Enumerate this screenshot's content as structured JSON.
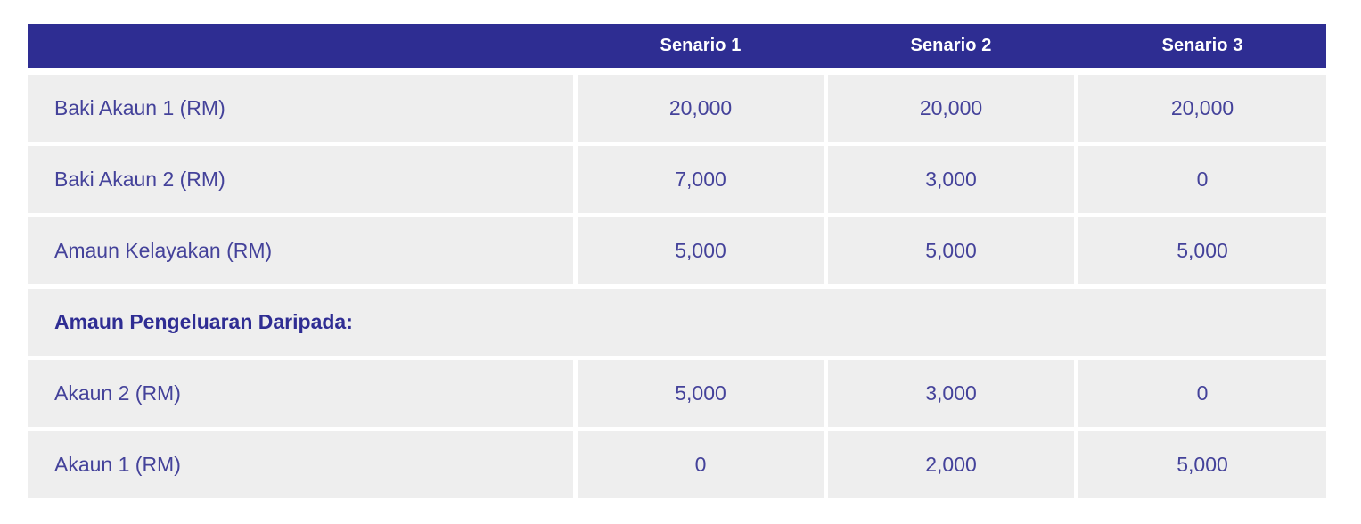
{
  "colors": {
    "header_bg": "#2e2d92",
    "header_text": "#ffffff",
    "cell_bg": "#eeeeee",
    "label_text": "#44429a",
    "section_text": "#2f2d93",
    "page_bg": "#ffffff"
  },
  "table": {
    "columns": [
      "",
      "Senario 1",
      "Senario 2",
      "Senario 3"
    ],
    "rows": [
      {
        "type": "data",
        "label": "Baki Akaun 1 (RM)",
        "values": [
          "20,000",
          "20,000",
          "20,000"
        ]
      },
      {
        "type": "data",
        "label": "Baki Akaun 2 (RM)",
        "values": [
          "7,000",
          "3,000",
          "0"
        ]
      },
      {
        "type": "data",
        "label": "Amaun Kelayakan (RM)",
        "values": [
          "5,000",
          "5,000",
          "5,000"
        ]
      },
      {
        "type": "section",
        "label": "Amaun Pengeluaran Daripada:",
        "values": []
      },
      {
        "type": "data",
        "label": "Akaun 2 (RM)",
        "values": [
          "5,000",
          "3,000",
          "0"
        ]
      },
      {
        "type": "data",
        "label": "Akaun 1 (RM)",
        "values": [
          "0",
          "2,000",
          "5,000"
        ]
      }
    ]
  },
  "chart_data": {
    "type": "table",
    "title": "",
    "columns": [
      "",
      "Senario 1",
      "Senario 2",
      "Senario 3"
    ],
    "rows": [
      [
        "Baki Akaun 1 (RM)",
        20000,
        20000,
        20000
      ],
      [
        "Baki Akaun 2 (RM)",
        7000,
        3000,
        0
      ],
      [
        "Amaun Kelayakan (RM)",
        5000,
        5000,
        5000
      ],
      [
        "Amaun Pengeluaran Daripada:",
        null,
        null,
        null
      ],
      [
        "Akaun 2 (RM)",
        5000,
        3000,
        0
      ],
      [
        "Akaun 1 (RM)",
        0,
        2000,
        5000
      ]
    ]
  }
}
